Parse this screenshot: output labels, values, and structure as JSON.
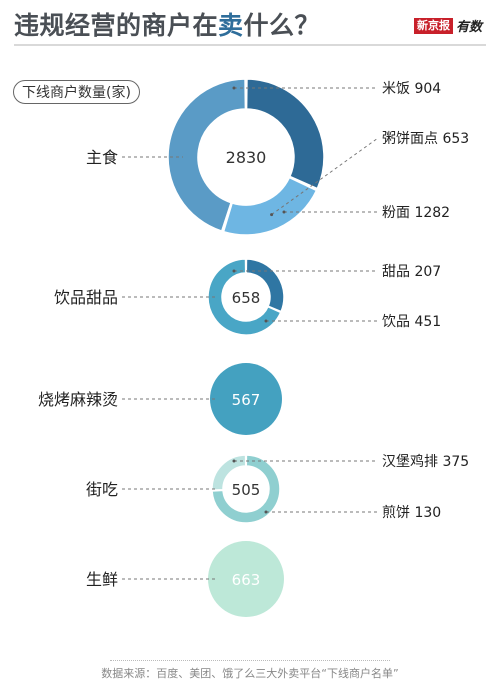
{
  "title": {
    "prefix": "违规经营的商户在",
    "highlight": "卖",
    "suffix": "什么？"
  },
  "brand": {
    "name": "新京报",
    "sub": "有数"
  },
  "unit_label": "下线商户数量(家)",
  "source": "数据来源：百度、美团、饿了么三大外卖平台“下线商户名单”",
  "colors": {
    "title_highlight": "#2f6e9b",
    "brand_red": "#c8202a"
  },
  "chart_data": {
    "type": "donut",
    "value_unit": "家",
    "groups": [
      {
        "category": "主食",
        "total": 2830,
        "subcategories": [
          {
            "label": "米饭",
            "value": 904,
            "color": "#2e6a96"
          },
          {
            "label": "粥饼面点",
            "value": 653,
            "color": "#6eb6e3"
          },
          {
            "label": "粉面",
            "value": 1282,
            "color": "#5a9bc6"
          }
        ]
      },
      {
        "category": "饮品甜品",
        "total": 658,
        "subcategories": [
          {
            "label": "甜品",
            "value": 207,
            "color": "#2f76a3"
          },
          {
            "label": "饮品",
            "value": 451,
            "color": "#49a6c6"
          }
        ]
      },
      {
        "category": "烧烤麻辣烫",
        "total": 567,
        "subcategories": [
          {
            "label": "",
            "value": 567,
            "color": "#44a1c0"
          }
        ]
      },
      {
        "category": "街吃",
        "total": 505,
        "subcategories": [
          {
            "label": "汉堡鸡排",
            "value": 375,
            "color": "#8fcfd0"
          },
          {
            "label": "煎饼",
            "value": 130,
            "color": "#bde3e0"
          }
        ]
      },
      {
        "category": "生鲜",
        "total": 663,
        "subcategories": [
          {
            "label": "",
            "value": 663,
            "color": "#bde8d8"
          }
        ]
      }
    ]
  }
}
